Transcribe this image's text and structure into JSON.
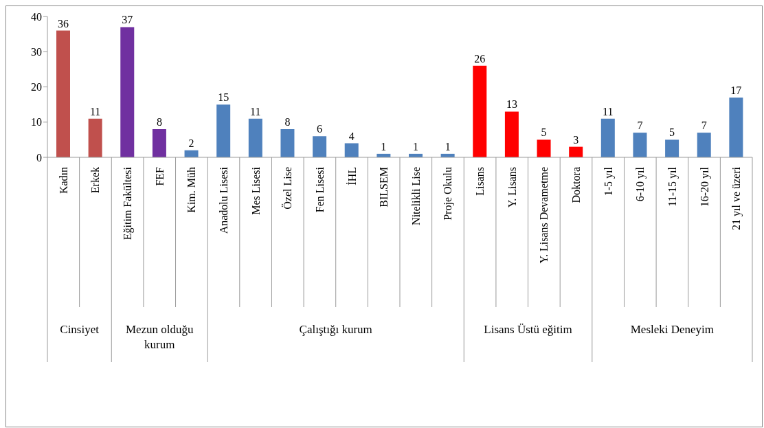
{
  "chart_data": {
    "type": "bar",
    "categories": [
      "Kadın",
      "Erkek",
      "Eğitim Fakültesi",
      "FEF",
      "Kim. Müh",
      "Anadolu Lisesi",
      "Mes Lisesi",
      "Özel Lise",
      "Fen Lisesi",
      "İHL",
      "BILSEM",
      "Nitelikli Lise",
      "Proje Okulu",
      "Lisans",
      "Y. Lisans",
      "Y. Lisans Devametme",
      "Doktora",
      "1-5 yıl",
      "6-10 yıl",
      "11-15 yıl",
      "16-20 yıl",
      "21 yıl ve üzeri"
    ],
    "values": [
      36,
      11,
      37,
      8,
      2,
      15,
      11,
      8,
      6,
      4,
      1,
      1,
      1,
      26,
      13,
      5,
      3,
      11,
      7,
      5,
      7,
      17
    ],
    "colors": [
      "#c0504d",
      "#c0504d",
      "#7030a0",
      "#7030a0",
      "#4f81bd",
      "#4f81bd",
      "#4f81bd",
      "#4f81bd",
      "#4f81bd",
      "#4f81bd",
      "#4f81bd",
      "#4f81bd",
      "#4f81bd",
      "#ff0000",
      "#ff0000",
      "#ff0000",
      "#ff0000",
      "#4f81bd",
      "#4f81bd",
      "#4f81bd",
      "#4f81bd",
      "#4f81bd"
    ],
    "annotations": [
      "Cinsiyet",
      "Mezun olduğu kurum",
      "Çalıştığı kurum",
      "Lisans Üstü eğitim",
      "Mesleki Deneyim"
    ],
    "ylim": [
      0,
      40
    ],
    "yticks": [
      0,
      10,
      20,
      30,
      40
    ],
    "grid": false,
    "legend": false,
    "data_labels": true
  }
}
